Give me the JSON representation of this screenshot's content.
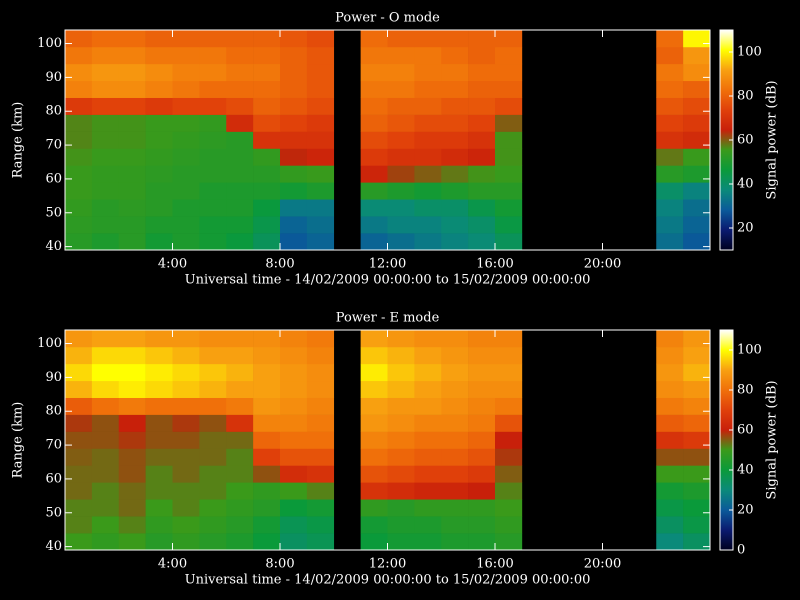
{
  "chart_data": [
    {
      "type": "heatmap",
      "title": "Power - O mode",
      "xlabel": "Universal time - 14/02/2009 00:00:00 to 15/02/2009 00:00:00",
      "ylabel": "Range (km)",
      "colorbar_label": "Signal power (dB)",
      "x": [
        0,
        1,
        2,
        3,
        4,
        5,
        6,
        7,
        8,
        9,
        10,
        11,
        12,
        13,
        14,
        15,
        16,
        17,
        18,
        19,
        20,
        21,
        22,
        23,
        24
      ],
      "y": [
        39,
        44,
        49,
        54,
        59,
        64,
        69,
        74,
        79,
        84,
        89,
        94,
        99,
        104
      ],
      "z": [
        [
          52,
          50,
          52,
          48,
          50,
          48,
          46,
          42,
          28,
          30,
          null,
          30,
          32,
          34,
          36,
          38,
          42,
          null,
          null,
          null,
          null,
          null,
          32,
          28
        ],
        [
          53,
          52,
          52,
          50,
          50,
          48,
          48,
          44,
          30,
          32,
          null,
          34,
          36,
          36,
          38,
          40,
          45,
          null,
          null,
          null,
          null,
          null,
          34,
          30
        ],
        [
          54,
          52,
          53,
          52,
          50,
          50,
          50,
          46,
          34,
          34,
          null,
          38,
          38,
          40,
          40,
          44,
          48,
          null,
          null,
          null,
          null,
          null,
          36,
          32
        ],
        [
          55,
          54,
          54,
          52,
          52,
          50,
          50,
          50,
          48,
          50,
          null,
          52,
          50,
          48,
          50,
          52,
          52,
          null,
          null,
          null,
          null,
          null,
          40,
          36
        ],
        [
          55,
          54,
          54,
          53,
          52,
          52,
          52,
          52,
          54,
          55,
          null,
          66,
          62,
          60,
          58,
          56,
          55,
          null,
          null,
          null,
          null,
          null,
          52,
          50
        ],
        [
          56,
          55,
          55,
          54,
          53,
          52,
          52,
          54,
          64,
          66,
          null,
          72,
          70,
          70,
          68,
          66,
          56,
          null,
          null,
          null,
          null,
          null,
          58,
          55
        ],
        [
          57,
          56,
          56,
          55,
          54,
          53,
          52,
          70,
          70,
          70,
          null,
          76,
          74,
          72,
          72,
          70,
          56,
          null,
          null,
          null,
          null,
          null,
          70,
          68
        ],
        [
          57,
          56,
          56,
          55,
          55,
          54,
          68,
          76,
          74,
          72,
          null,
          80,
          78,
          76,
          76,
          74,
          60,
          null,
          null,
          null,
          null,
          null,
          74,
          72
        ],
        [
          72,
          74,
          74,
          72,
          74,
          74,
          76,
          80,
          78,
          76,
          null,
          82,
          80,
          80,
          78,
          78,
          76,
          null,
          null,
          null,
          null,
          null,
          78,
          76
        ],
        [
          86,
          88,
          88,
          86,
          84,
          82,
          82,
          82,
          80,
          78,
          null,
          84,
          84,
          82,
          82,
          80,
          80,
          null,
          null,
          null,
          null,
          null,
          82,
          80
        ],
        [
          88,
          90,
          90,
          88,
          86,
          86,
          84,
          84,
          80,
          78,
          null,
          86,
          86,
          84,
          84,
          82,
          82,
          null,
          null,
          null,
          null,
          null,
          84,
          88
        ],
        [
          84,
          86,
          86,
          84,
          84,
          84,
          82,
          82,
          80,
          78,
          null,
          84,
          84,
          84,
          82,
          80,
          82,
          null,
          null,
          null,
          null,
          null,
          80,
          90
        ],
        [
          80,
          82,
          82,
          80,
          80,
          80,
          80,
          80,
          78,
          76,
          null,
          82,
          80,
          80,
          80,
          80,
          80,
          null,
          null,
          null,
          null,
          null,
          82,
          100
        ]
      ],
      "xlim": [
        0,
        24
      ],
      "ylim": [
        39,
        104
      ],
      "xticks": [
        {
          "value": 4,
          "label": "4:00"
        },
        {
          "value": 8,
          "label": "8:00"
        },
        {
          "value": 12,
          "label": "12:00"
        },
        {
          "value": 16,
          "label": "16:00"
        },
        {
          "value": 20,
          "label": "20:00"
        }
      ],
      "yticks": [
        40,
        50,
        60,
        70,
        80,
        90,
        100
      ],
      "zlim": [
        10,
        110
      ],
      "zticks": [
        20,
        40,
        60,
        80,
        100
      ],
      "colormap": [
        "#000020",
        "#0a1a70",
        "#0a5a9a",
        "#0a8a7a",
        "#0a9a3a",
        "#3a9a1a",
        "#c8200a",
        "#e0400a",
        "#f0700a",
        "#f8a010",
        "#ffff00",
        "#ffffff"
      ]
    },
    {
      "type": "heatmap",
      "title": "Power - E mode",
      "xlabel": "Universal time - 14/02/2009 00:00:00 to 15/02/2009 00:00:00",
      "ylabel": "Range (km)",
      "colorbar_label": "Signal power (dB)",
      "x": [
        0,
        1,
        2,
        3,
        4,
        5,
        6,
        7,
        8,
        9,
        10,
        11,
        12,
        13,
        14,
        15,
        16,
        17,
        18,
        19,
        20,
        21,
        22,
        23,
        24
      ],
      "y": [
        39,
        44,
        49,
        54,
        59,
        64,
        69,
        74,
        79,
        84,
        89,
        94,
        99,
        104
      ],
      "z": [
        [
          50,
          48,
          50,
          46,
          48,
          46,
          44,
          40,
          34,
          36,
          null,
          40,
          42,
          42,
          44,
          44,
          46,
          null,
          null,
          null,
          null,
          null,
          30,
          34
        ],
        [
          52,
          50,
          52,
          48,
          50,
          48,
          46,
          42,
          36,
          38,
          null,
          42,
          44,
          44,
          46,
          46,
          48,
          null,
          null,
          null,
          null,
          null,
          34,
          38
        ],
        [
          52,
          52,
          54,
          50,
          52,
          50,
          48,
          46,
          40,
          42,
          null,
          48,
          46,
          48,
          48,
          48,
          50,
          null,
          null,
          null,
          null,
          null,
          38,
          40
        ],
        [
          54,
          52,
          54,
          52,
          52,
          52,
          50,
          48,
          50,
          52,
          null,
          66,
          64,
          62,
          62,
          60,
          52,
          null,
          null,
          null,
          null,
          null,
          42,
          44
        ],
        [
          54,
          54,
          56,
          52,
          54,
          52,
          52,
          56,
          64,
          66,
          null,
          74,
          72,
          70,
          70,
          68,
          55,
          null,
          null,
          null,
          null,
          null,
          50,
          50
        ],
        [
          55,
          54,
          56,
          54,
          54,
          54,
          52,
          70,
          74,
          74,
          null,
          80,
          78,
          76,
          76,
          74,
          58,
          null,
          null,
          null,
          null,
          null,
          56,
          56
        ],
        [
          56,
          56,
          58,
          56,
          56,
          54,
          54,
          78,
          80,
          80,
          null,
          84,
          82,
          80,
          80,
          78,
          60,
          null,
          null,
          null,
          null,
          null,
          66,
          68
        ],
        [
          58,
          56,
          60,
          56,
          58,
          56,
          66,
          84,
          84,
          82,
          null,
          88,
          86,
          84,
          84,
          82,
          74,
          null,
          null,
          null,
          null,
          null,
          76,
          78
        ],
        [
          76,
          80,
          82,
          80,
          80,
          80,
          82,
          88,
          86,
          84,
          null,
          90,
          88,
          88,
          86,
          84,
          82,
          null,
          null,
          null,
          null,
          null,
          82,
          84
        ],
        [
          92,
          96,
          98,
          96,
          94,
          92,
          90,
          90,
          88,
          86,
          null,
          94,
          92,
          90,
          88,
          86,
          86,
          null,
          null,
          null,
          null,
          null,
          86,
          88
        ],
        [
          96,
          100,
          100,
          98,
          96,
          94,
          92,
          90,
          88,
          86,
          null,
          98,
          94,
          92,
          90,
          88,
          88,
          null,
          null,
          null,
          null,
          null,
          88,
          92
        ],
        [
          92,
          96,
          96,
          94,
          92,
          90,
          90,
          88,
          86,
          84,
          null,
          94,
          92,
          90,
          88,
          86,
          86,
          null,
          null,
          null,
          null,
          null,
          86,
          90
        ],
        [
          88,
          90,
          90,
          88,
          88,
          86,
          86,
          86,
          84,
          82,
          null,
          90,
          88,
          86,
          86,
          84,
          84,
          null,
          null,
          null,
          null,
          null,
          84,
          88
        ]
      ],
      "xlim": [
        0,
        24
      ],
      "ylim": [
        39,
        104
      ],
      "xticks": [
        {
          "value": 4,
          "label": "4:00"
        },
        {
          "value": 8,
          "label": "8:00"
        },
        {
          "value": 12,
          "label": "12:00"
        },
        {
          "value": 16,
          "label": "16:00"
        },
        {
          "value": 20,
          "label": "20:00"
        }
      ],
      "yticks": [
        40,
        50,
        60,
        70,
        80,
        90,
        100
      ],
      "zlim": [
        0,
        110
      ],
      "zticks": [
        0,
        20,
        40,
        60,
        80,
        100
      ],
      "colormap": [
        "#000020",
        "#0a1a70",
        "#0a5a9a",
        "#0a8a7a",
        "#0a9a3a",
        "#3a9a1a",
        "#c8200a",
        "#e0400a",
        "#f0700a",
        "#f8a010",
        "#ffff00",
        "#ffffff"
      ]
    }
  ]
}
